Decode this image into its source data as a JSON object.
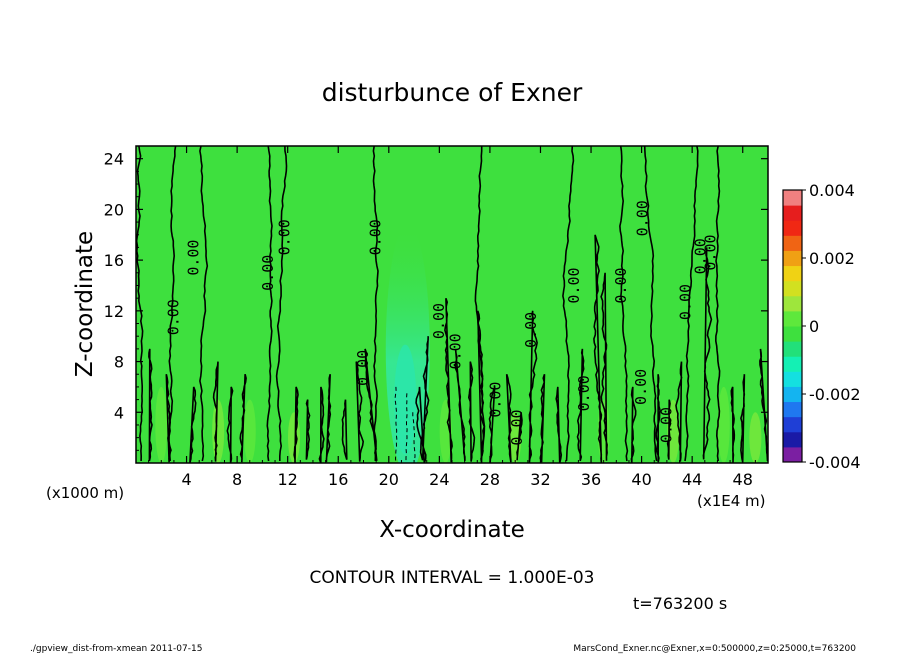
{
  "chart_data": {
    "type": "heatmap",
    "title": "disturbunce of Exner",
    "xlabel": "X-coordinate",
    "ylabel": "Z-coordinate",
    "x_unit": "(x1E4 m)",
    "y_unit": "(x1000 m)",
    "xlim": [
      0,
      50
    ],
    "ylim": [
      0,
      25
    ],
    "x_ticks": [
      "4",
      "8",
      "12",
      "16",
      "20",
      "24",
      "28",
      "32",
      "36",
      "40",
      "44",
      "48"
    ],
    "x_tick_values": [
      4,
      8,
      12,
      16,
      20,
      24,
      28,
      32,
      36,
      40,
      44,
      48
    ],
    "y_ticks": [
      "4",
      "8",
      "12",
      "16",
      "20",
      "24"
    ],
    "y_tick_values": [
      4,
      8,
      12,
      16,
      20,
      24
    ],
    "colorbar": {
      "labels": [
        "0.004",
        "0.002",
        "0",
        "-0.002",
        "-0.004"
      ],
      "label_values": [
        0.004,
        0.002,
        0,
        -0.002,
        -0.004
      ],
      "range": [
        -0.004,
        0.004
      ],
      "colors": [
        "#7b1fa2",
        "#1a1aa6",
        "#1f3fd6",
        "#1f78f0",
        "#14b4f0",
        "#14e0e0",
        "#14f0b4",
        "#22e07a",
        "#3ee03e",
        "#5ee83c",
        "#9ee63c",
        "#d2e020",
        "#f0d214",
        "#f0a014",
        "#f06414",
        "#f02814",
        "#e61e1e",
        "#f08080"
      ]
    },
    "contour_labels": [
      {
        "text": "0.00",
        "x": 3.0,
        "y": 11.5
      },
      {
        "text": "0.00",
        "x": 4.6,
        "y": 16.2
      },
      {
        "text": "0.00",
        "x": 10.5,
        "y": 15.0
      },
      {
        "text": "0.00",
        "x": 11.8,
        "y": 17.8
      },
      {
        "text": "0.00",
        "x": 19.0,
        "y": 17.8
      },
      {
        "text": "0.00",
        "x": 18.0,
        "y": 7.5
      },
      {
        "text": "0.00",
        "x": 24.0,
        "y": 11.2
      },
      {
        "text": "0.00",
        "x": 25.3,
        "y": 8.8
      },
      {
        "text": "0.00",
        "x": 28.5,
        "y": 5.0
      },
      {
        "text": "0.00",
        "x": 30.2,
        "y": 2.8
      },
      {
        "text": "0.00",
        "x": 31.3,
        "y": 10.5
      },
      {
        "text": "0.00",
        "x": 34.7,
        "y": 14.0
      },
      {
        "text": "0.00",
        "x": 35.5,
        "y": 5.5
      },
      {
        "text": "0.00",
        "x": 38.4,
        "y": 14.0
      },
      {
        "text": "0.00",
        "x": 40.1,
        "y": 19.3
      },
      {
        "text": "0.00",
        "x": 40.0,
        "y": 6.0
      },
      {
        "text": "0.00",
        "x": 42.0,
        "y": 3.0
      },
      {
        "text": "0.00",
        "x": 43.5,
        "y": 12.7
      },
      {
        "text": "0.00",
        "x": 44.7,
        "y": 16.3
      },
      {
        "text": "0.00",
        "x": 45.5,
        "y": 16.6
      }
    ],
    "contour_interval_text": "CONTOUR INTERVAL = 1.000E-03",
    "time_text": "t=763200 s"
  },
  "footer": {
    "left": "./gpview_dist-from-xmean   2011-07-15",
    "right": "MarsCond_Exner.nc@Exner,x=0:500000,z=0:25000,t=763200"
  }
}
